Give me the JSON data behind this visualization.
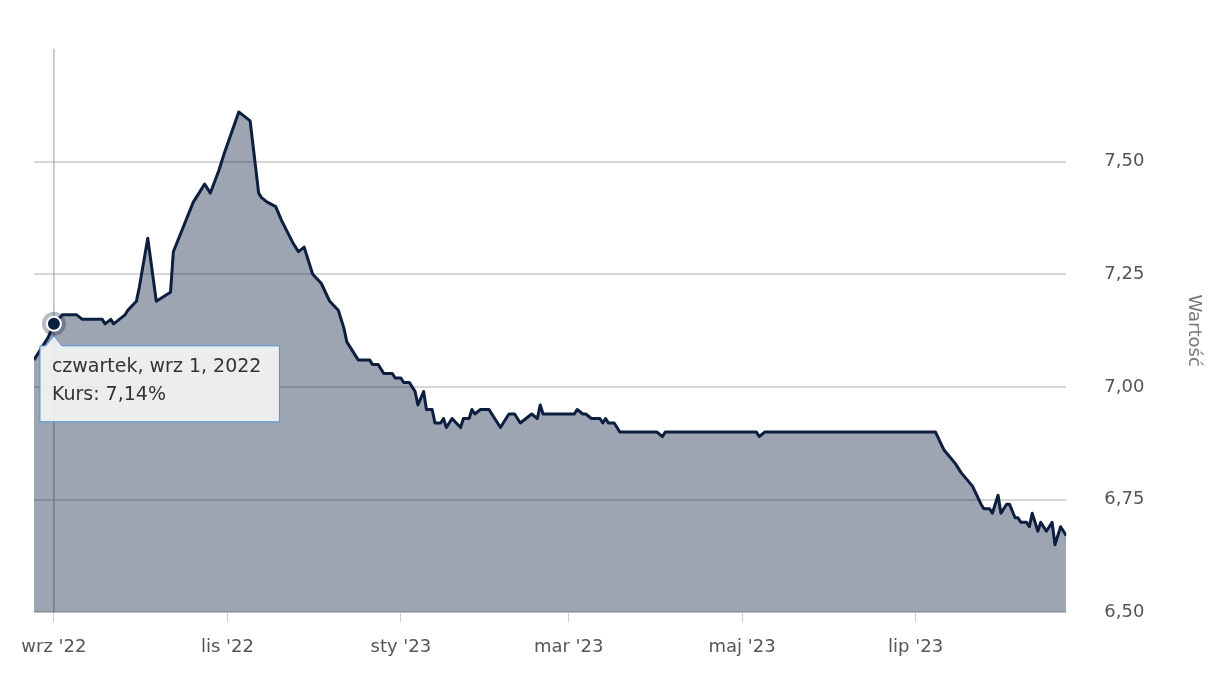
{
  "chart_data": {
    "type": "area",
    "ylabel": "Wartość",
    "x": [
      "2022-08-25",
      "2022-08-27",
      "2022-08-30",
      "2022-09-01",
      "2022-09-04",
      "2022-09-09",
      "2022-09-11",
      "2022-09-18",
      "2022-09-19",
      "2022-09-21",
      "2022-09-22",
      "2022-09-24",
      "2022-09-26",
      "2022-09-27",
      "2022-09-30",
      "2022-10-01",
      "2022-10-04",
      "2022-10-07",
      "2022-10-12",
      "2022-10-13",
      "2022-10-20",
      "2022-10-22",
      "2022-10-24",
      "2022-10-26",
      "2022-10-29",
      "2022-10-31",
      "2022-11-05",
      "2022-11-07",
      "2022-11-09",
      "2022-11-12",
      "2022-11-13",
      "2022-11-15",
      "2022-11-18",
      "2022-11-20",
      "2022-11-24",
      "2022-11-26",
      "2022-11-28",
      "2022-12-01",
      "2022-12-04",
      "2022-12-07",
      "2022-12-10",
      "2022-12-12",
      "2022-12-13",
      "2022-12-15",
      "2022-12-17",
      "2022-12-21",
      "2022-12-22",
      "2022-12-24",
      "2022-12-26",
      "2022-12-29",
      "2022-12-30",
      "2023-01-01",
      "2023-01-02",
      "2023-01-04",
      "2023-01-06",
      "2023-01-07",
      "2023-01-09",
      "2023-01-10",
      "2023-01-12",
      "2023-01-13",
      "2023-01-15",
      "2023-01-16",
      "2023-01-17",
      "2023-01-19",
      "2023-01-22",
      "2023-01-23",
      "2023-01-25",
      "2023-01-26",
      "2023-01-27",
      "2023-01-29",
      "2023-02-01",
      "2023-02-03",
      "2023-02-05",
      "2023-02-08",
      "2023-02-10",
      "2023-02-12",
      "2023-02-14",
      "2023-02-16",
      "2023-02-18",
      "2023-02-19",
      "2023-02-20",
      "2023-03-03",
      "2023-03-04",
      "2023-03-06",
      "2023-03-07",
      "2023-03-09",
      "2023-03-12",
      "2023-03-13",
      "2023-03-14",
      "2023-03-15",
      "2023-03-17",
      "2023-03-19",
      "2023-04-01",
      "2023-04-03",
      "2023-04-04",
      "2023-05-06",
      "2023-05-07",
      "2023-05-09",
      "2023-07-08",
      "2023-07-11",
      "2023-07-15",
      "2023-07-17",
      "2023-07-21",
      "2023-07-24",
      "2023-07-25",
      "2023-07-27",
      "2023-07-28",
      "2023-07-30",
      "2023-07-31",
      "2023-08-02",
      "2023-08-03",
      "2023-08-05",
      "2023-08-06",
      "2023-08-07",
      "2023-08-09",
      "2023-08-10",
      "2023-08-11",
      "2023-08-13",
      "2023-08-14",
      "2023-08-16",
      "2023-08-18",
      "2023-08-19",
      "2023-08-21",
      "2023-08-23"
    ],
    "series": [
      {
        "color": "#0d1f3f",
        "values": [
          7.06,
          7.08,
          7.11,
          7.14,
          7.16,
          7.16,
          7.15,
          7.15,
          7.14,
          7.15,
          7.14,
          7.15,
          7.16,
          7.17,
          7.19,
          7.22,
          7.33,
          7.19,
          7.21,
          7.3,
          7.41,
          7.43,
          7.45,
          7.43,
          7.48,
          7.52,
          7.61,
          7.6,
          7.59,
          7.43,
          7.42,
          7.41,
          7.4,
          7.37,
          7.32,
          7.3,
          7.31,
          7.25,
          7.23,
          7.19,
          7.17,
          7.13,
          7.1,
          7.08,
          7.06,
          7.06,
          7.05,
          7.05,
          7.03,
          7.03,
          7.02,
          7.02,
          7.01,
          7.01,
          6.99,
          6.96,
          6.99,
          6.95,
          6.95,
          6.92,
          6.92,
          6.93,
          6.91,
          6.93,
          6.91,
          6.93,
          6.93,
          6.95,
          6.94,
          6.95,
          6.95,
          6.93,
          6.91,
          6.94,
          6.94,
          6.92,
          6.93,
          6.94,
          6.93,
          6.96,
          6.94,
          6.94,
          6.95,
          6.94,
          6.94,
          6.93,
          6.93,
          6.92,
          6.93,
          6.92,
          6.92,
          6.9,
          6.9,
          6.89,
          6.9,
          6.9,
          6.89,
          6.9,
          6.9,
          6.86,
          6.83,
          6.81,
          6.78,
          6.74,
          6.73,
          6.73,
          6.72,
          6.76,
          6.72,
          6.74,
          6.74,
          6.71,
          6.71,
          6.7,
          6.7,
          6.69,
          6.72,
          6.68,
          6.7,
          6.68,
          6.7,
          6.65,
          6.69,
          6.67
        ]
      }
    ],
    "xlim": [
      "2022-08-25",
      "2023-08-23"
    ],
    "xticks": [
      {
        "value": "2022-09-01",
        "label": "wrz '22"
      },
      {
        "value": "2022-11-01",
        "label": "lis '22"
      },
      {
        "value": "2023-01-01",
        "label": "sty '23"
      },
      {
        "value": "2023-03-01",
        "label": "mar '23"
      },
      {
        "value": "2023-05-01",
        "label": "maj '23"
      },
      {
        "value": "2023-07-01",
        "label": "lip '23"
      }
    ],
    "ylim": [
      6.5,
      7.75
    ],
    "yticks": [
      {
        "value": 6.5,
        "label": "6,50"
      },
      {
        "value": 6.75,
        "label": "6,75"
      },
      {
        "value": 7,
        "label": "7,00"
      },
      {
        "value": 7.25,
        "label": "7,25"
      },
      {
        "value": 7.5,
        "label": "7,50"
      }
    ],
    "grid": "y",
    "legend": false,
    "marker": "none",
    "line_style": "solid",
    "ref_lines": [
      {
        "axis": "x",
        "value": "2022-09-01",
        "color": "#999999"
      }
    ],
    "annotations": [
      {
        "text": "czwartek, wrz 1, 2022\nKurs: 7,14%",
        "x": "2022-09-01",
        "y": 7.14
      }
    ]
  }
}
